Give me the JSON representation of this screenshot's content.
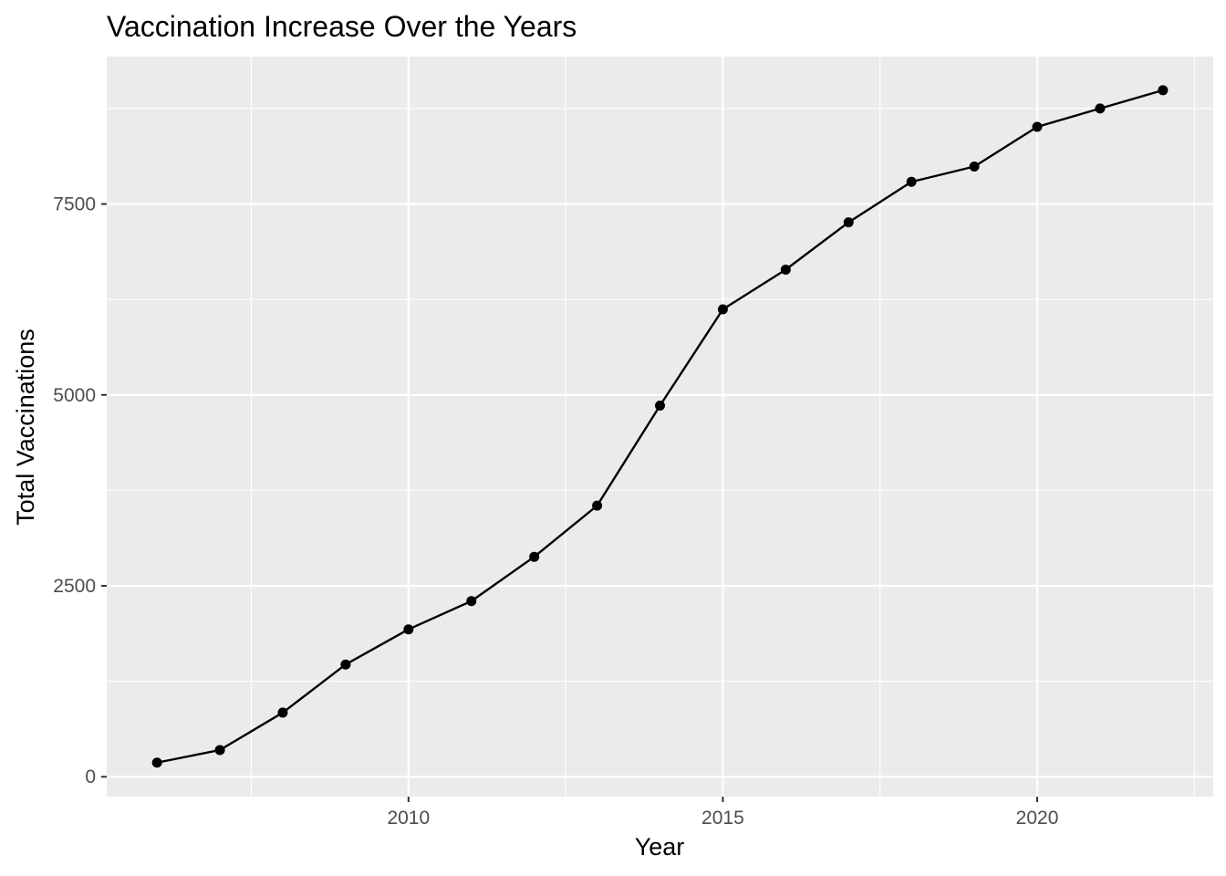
{
  "chart_data": {
    "type": "line",
    "title": "Vaccination Increase Over the Years",
    "xlabel": "Year",
    "ylabel": "Total Vaccinations",
    "x": [
      2006,
      2007,
      2008,
      2009,
      2010,
      2011,
      2012,
      2013,
      2014,
      2015,
      2016,
      2017,
      2018,
      2019,
      2020,
      2021,
      2022
    ],
    "y": [
      185,
      350,
      840,
      1470,
      1930,
      2300,
      2880,
      3550,
      4860,
      6120,
      6640,
      7260,
      7790,
      7990,
      8510,
      8750,
      8990
    ],
    "xlim": [
      2005.2,
      2022.8
    ],
    "ylim": [
      -260,
      9430
    ],
    "x_ticks": [
      2010,
      2015,
      2020
    ],
    "x_tick_labels": [
      "2010",
      "2015",
      "2020"
    ],
    "x_minor_ticks": [
      2007.5,
      2012.5,
      2017.5,
      2022.5
    ],
    "y_ticks": [
      0,
      2500,
      5000,
      7500
    ],
    "y_tick_labels": [
      "0",
      "2500",
      "5000",
      "7500"
    ],
    "y_minor_ticks": [
      1250,
      3750,
      6250,
      8750
    ],
    "grid": true,
    "legend": "none",
    "colors": {
      "panel_background": "#ebebeb",
      "grid_line": "#ffffff",
      "series": "#000000",
      "tick_label": "#4d4d4d",
      "tick_mark": "#333333"
    }
  }
}
